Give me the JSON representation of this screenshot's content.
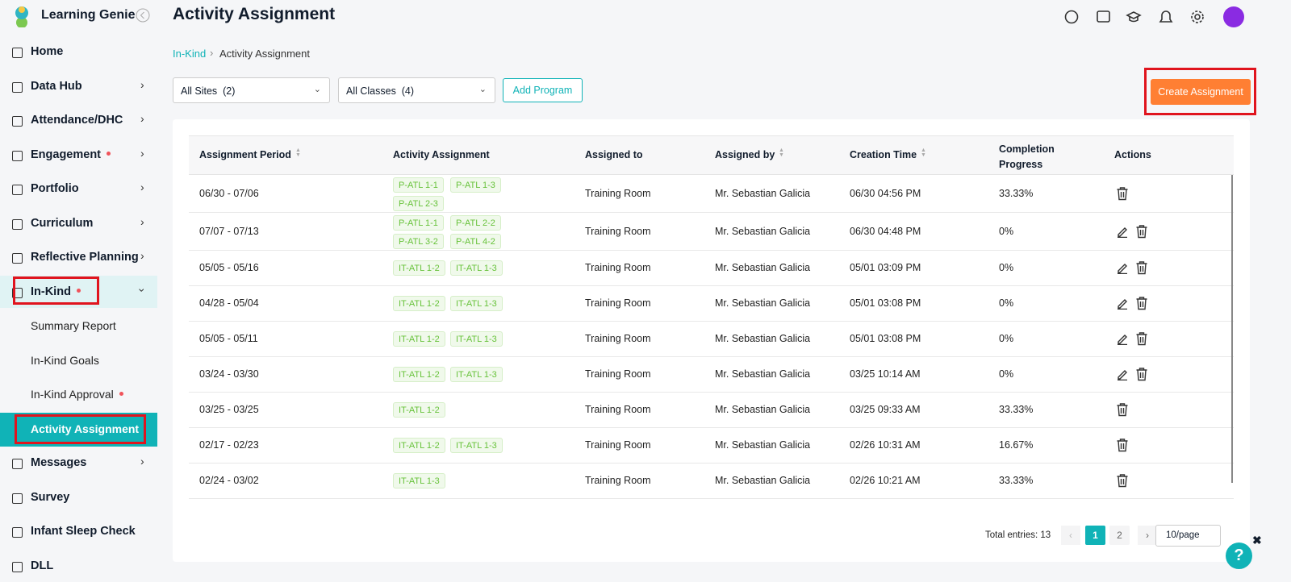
{
  "app": {
    "name": "Learning Genie"
  },
  "header": {
    "title": "Activity Assignment"
  },
  "breadcrumb": [
    "In-Kind",
    "Activity Assignment"
  ],
  "nav": [
    {
      "label": "Home"
    },
    {
      "label": "Data Hub",
      "expandable": true
    },
    {
      "label": "Attendance/DHC",
      "expandable": true
    },
    {
      "label": "Engagement",
      "expandable": true,
      "alert": true
    },
    {
      "label": "Portfolio",
      "expandable": true
    },
    {
      "label": "Curriculum",
      "expandable": true
    },
    {
      "label": "Reflective Planning",
      "expandable": true
    },
    {
      "label": "In-Kind",
      "expanded": true,
      "alert": true,
      "children": [
        {
          "label": "Summary Report"
        },
        {
          "label": "In-Kind Goals"
        },
        {
          "label": "In-Kind Approval",
          "alert": true
        },
        {
          "label": "Activity Assignment",
          "active": true
        }
      ]
    },
    {
      "label": "Messages",
      "expandable": true
    },
    {
      "label": "Survey"
    },
    {
      "label": "Infant Sleep Check"
    },
    {
      "label": "DLL"
    }
  ],
  "filters": [
    "All Sites  (2)",
    "All Classes  (4)"
  ],
  "buttons": {
    "add": "Add Program",
    "create": "Create Assignment"
  },
  "table": {
    "columns": [
      {
        "label": "Assignment Period",
        "sortable": true
      },
      {
        "label": "Activity Assignment"
      },
      {
        "label": "Assigned to"
      },
      {
        "label": "Assigned by",
        "sortable": true
      },
      {
        "label": "Creation Time",
        "sortable": true
      },
      {
        "label": "Completion Progress"
      },
      {
        "label": "Actions"
      }
    ],
    "rows": [
      {
        "period": "06/30 - 07/06",
        "tags": [
          "P-ATL 1-1",
          "P-ATL 1-3",
          "P-ATL 2-3"
        ],
        "assigned_to": "Training Room",
        "assigned_by": "Mr. Sebastian Galicia",
        "created": "06/30 04:56 PM",
        "progress": "33.33%",
        "editable": false
      },
      {
        "period": "07/07 - 07/13",
        "tags": [
          "P-ATL 1-1",
          "P-ATL 2-2",
          "P-ATL 3-2",
          "P-ATL 4-2"
        ],
        "assigned_to": "Training Room",
        "assigned_by": "Mr. Sebastian Galicia",
        "created": "06/30 04:48 PM",
        "progress": "0%",
        "editable": true
      },
      {
        "period": "05/05 - 05/16",
        "tags": [
          "IT-ATL 1-2",
          "IT-ATL 1-3"
        ],
        "assigned_to": "Training Room",
        "assigned_by": "Mr. Sebastian Galicia",
        "created": "05/01 03:09 PM",
        "progress": "0%",
        "editable": true
      },
      {
        "period": "04/28 - 05/04",
        "tags": [
          "IT-ATL 1-2",
          "IT-ATL 1-3"
        ],
        "assigned_to": "Training Room",
        "assigned_by": "Mr. Sebastian Galicia",
        "created": "05/01 03:08 PM",
        "progress": "0%",
        "editable": true
      },
      {
        "period": "05/05 - 05/11",
        "tags": [
          "IT-ATL 1-2",
          "IT-ATL 1-3"
        ],
        "assigned_to": "Training Room",
        "assigned_by": "Mr. Sebastian Galicia",
        "created": "05/01 03:08 PM",
        "progress": "0%",
        "editable": true
      },
      {
        "period": "03/24 - 03/30",
        "tags": [
          "IT-ATL 1-2",
          "IT-ATL 1-3"
        ],
        "assigned_to": "Training Room",
        "assigned_by": "Mr. Sebastian Galicia",
        "created": "03/25 10:14 AM",
        "progress": "0%",
        "editable": true
      },
      {
        "period": "03/25 - 03/25",
        "tags": [
          "IT-ATL 1-2"
        ],
        "assigned_to": "Training Room",
        "assigned_by": "Mr. Sebastian Galicia",
        "created": "03/25 09:33 AM",
        "progress": "33.33%",
        "editable": false
      },
      {
        "period": "02/17 - 02/23",
        "tags": [
          "IT-ATL 1-2",
          "IT-ATL 1-3"
        ],
        "assigned_to": "Training Room",
        "assigned_by": "Mr. Sebastian Galicia",
        "created": "02/26 10:31 AM",
        "progress": "16.67%",
        "editable": false
      },
      {
        "period": "02/24 - 03/02",
        "tags": [
          "IT-ATL 1-3"
        ],
        "assigned_to": "Training Room",
        "assigned_by": "Mr. Sebastian Galicia",
        "created": "02/26 10:21 AM",
        "progress": "33.33%",
        "editable": false
      }
    ]
  },
  "pagination": {
    "total": "Total entries: 13",
    "pages": [
      1,
      2
    ],
    "current": 1,
    "size": "10/page"
  },
  "help_button": "?"
}
